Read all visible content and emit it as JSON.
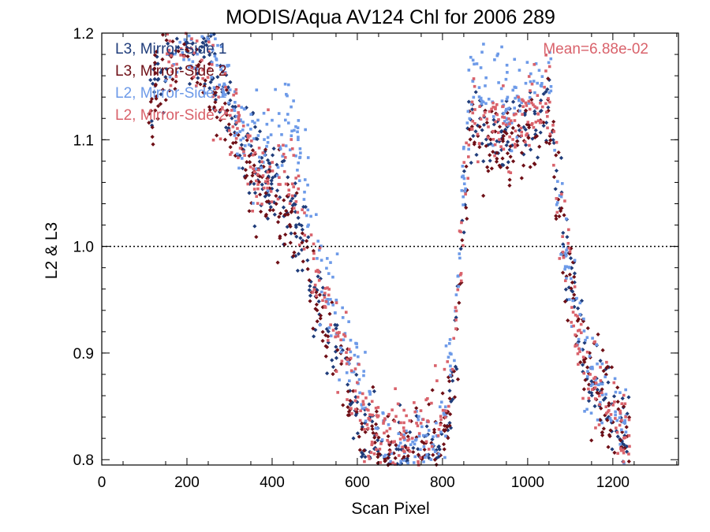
{
  "chart_data": {
    "type": "scatter",
    "title": "MODIS/Aqua AV124 Chl for 2006 289",
    "xlabel": "Scan Pixel",
    "ylabel": "L2 & L3",
    "xlim": [
      0,
      1354
    ],
    "ylim": [
      0.795,
      1.2
    ],
    "xticks": [
      0,
      200,
      400,
      600,
      800,
      1000,
      1200
    ],
    "xtick_labels": [
      "0",
      "200",
      "400",
      "600",
      "800",
      "1000",
      "1200"
    ],
    "yticks": [
      0.8,
      0.9,
      1.0,
      1.1,
      1.2
    ],
    "ytick_labels": [
      "0.8",
      "0.9",
      "1.0",
      "1.1",
      "1.2"
    ],
    "reference_line": {
      "y": 1.0,
      "style": "dotted"
    },
    "annotation": {
      "text": "Mean=6.88e-02",
      "color": "#d9626b"
    },
    "legend_position": "top-left",
    "grid": false,
    "series": [
      {
        "name": "L3, Mirror-Side 1",
        "color": "#1f3c7a",
        "marker": "diamond",
        "trend": [
          [
            110,
            1.13
          ],
          [
            150,
            1.17
          ],
          [
            200,
            1.19
          ],
          [
            250,
            1.17
          ],
          [
            300,
            1.12
          ],
          [
            350,
            1.08
          ],
          [
            400,
            1.06
          ],
          [
            450,
            1.03
          ],
          [
            480,
            1.0
          ],
          [
            500,
            0.96
          ],
          [
            530,
            0.93
          ],
          [
            560,
            0.9
          ],
          [
            590,
            0.86
          ],
          [
            620,
            0.82
          ],
          [
            650,
            0.8
          ],
          [
            700,
            0.8
          ],
          [
            760,
            0.8
          ],
          [
            800,
            0.81
          ],
          [
            830,
            0.9
          ],
          [
            850,
            1.05
          ],
          [
            870,
            1.13
          ],
          [
            900,
            1.11
          ],
          [
            950,
            1.1
          ],
          [
            1000,
            1.11
          ],
          [
            1050,
            1.13
          ],
          [
            1075,
            1.05
          ],
          [
            1090,
            0.99
          ],
          [
            1110,
            0.95
          ],
          [
            1140,
            0.89
          ],
          [
            1180,
            0.86
          ],
          [
            1210,
            0.84
          ],
          [
            1240,
            0.81
          ]
        ],
        "spread": 0.03
      },
      {
        "name": "L3, Mirror-Side 2",
        "color": "#6e0f16",
        "marker": "diamond",
        "trend": [
          [
            110,
            1.13
          ],
          [
            150,
            1.17
          ],
          [
            200,
            1.19
          ],
          [
            250,
            1.17
          ],
          [
            300,
            1.11
          ],
          [
            350,
            1.07
          ],
          [
            400,
            1.05
          ],
          [
            450,
            1.02
          ],
          [
            480,
            0.99
          ],
          [
            500,
            0.95
          ],
          [
            530,
            0.92
          ],
          [
            560,
            0.89
          ],
          [
            590,
            0.85
          ],
          [
            620,
            0.82
          ],
          [
            650,
            0.8
          ],
          [
            700,
            0.8
          ],
          [
            760,
            0.8
          ],
          [
            800,
            0.81
          ],
          [
            830,
            0.88
          ],
          [
            850,
            1.03
          ],
          [
            870,
            1.12
          ],
          [
            900,
            1.1
          ],
          [
            950,
            1.09
          ],
          [
            1000,
            1.1
          ],
          [
            1050,
            1.12
          ],
          [
            1075,
            1.04
          ],
          [
            1090,
            0.99
          ],
          [
            1110,
            0.94
          ],
          [
            1140,
            0.88
          ],
          [
            1180,
            0.86
          ],
          [
            1210,
            0.84
          ],
          [
            1240,
            0.81
          ]
        ],
        "spread": 0.03
      },
      {
        "name": "L2, Mirror-Side 1",
        "color": "#6d9ae8",
        "marker": "square",
        "trend": [
          [
            150,
            1.18
          ],
          [
            200,
            1.2
          ],
          [
            250,
            1.19
          ],
          [
            300,
            1.14
          ],
          [
            350,
            1.1
          ],
          [
            400,
            1.1
          ],
          [
            450,
            1.12
          ],
          [
            500,
            1.0
          ],
          [
            530,
            0.96
          ],
          [
            560,
            0.93
          ],
          [
            590,
            0.89
          ],
          [
            620,
            0.86
          ],
          [
            650,
            0.82
          ],
          [
            700,
            0.8
          ],
          [
            800,
            0.82
          ],
          [
            830,
            0.93
          ],
          [
            850,
            1.07
          ],
          [
            870,
            1.16
          ],
          [
            900,
            1.15
          ],
          [
            950,
            1.14
          ],
          [
            1000,
            1.15
          ],
          [
            1050,
            1.16
          ],
          [
            1075,
            1.05
          ],
          [
            1090,
            0.99
          ],
          [
            1110,
            0.95
          ],
          [
            1140,
            0.89
          ],
          [
            1180,
            0.87
          ],
          [
            1210,
            0.85
          ],
          [
            1240,
            0.82
          ]
        ],
        "spread": 0.028
      },
      {
        "name": "L2, Mirror-Side 2",
        "color": "#d9626b",
        "marker": "square",
        "trend": [
          [
            150,
            1.17
          ],
          [
            200,
            1.19
          ],
          [
            250,
            1.17
          ],
          [
            300,
            1.12
          ],
          [
            350,
            1.08
          ],
          [
            400,
            1.07
          ],
          [
            450,
            1.06
          ],
          [
            500,
            0.98
          ],
          [
            530,
            0.94
          ],
          [
            560,
            0.91
          ],
          [
            590,
            0.87
          ],
          [
            620,
            0.84
          ],
          [
            650,
            0.82
          ],
          [
            700,
            0.82
          ],
          [
            750,
            0.82
          ],
          [
            800,
            0.84
          ],
          [
            830,
            0.91
          ],
          [
            850,
            1.05
          ],
          [
            870,
            1.13
          ],
          [
            900,
            1.12
          ],
          [
            950,
            1.11
          ],
          [
            1000,
            1.12
          ],
          [
            1050,
            1.14
          ],
          [
            1075,
            1.04
          ],
          [
            1090,
            0.99
          ],
          [
            1110,
            0.94
          ],
          [
            1140,
            0.88
          ],
          [
            1180,
            0.86
          ],
          [
            1210,
            0.84
          ],
          [
            1240,
            0.81
          ]
        ],
        "spread": 0.028
      }
    ]
  }
}
